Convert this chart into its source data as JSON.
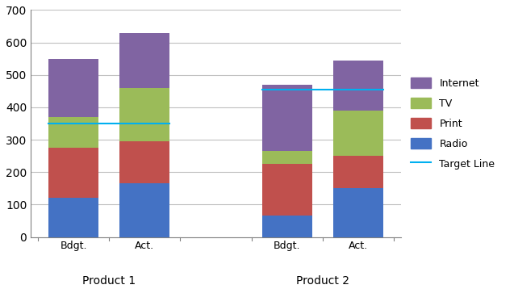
{
  "groups": [
    "Product 1",
    "Product 2"
  ],
  "bars": [
    "Bdgt.",
    "Act."
  ],
  "segments": [
    "Radio",
    "Print",
    "TV",
    "Internet"
  ],
  "colors": {
    "Radio": "#4472C4",
    "Print": "#C0504D",
    "TV": "#9BBB59",
    "Internet": "#8064A2"
  },
  "values": {
    "Product 1": {
      "Bdgt.": [
        120,
        155,
        95,
        180
      ],
      "Act.": [
        165,
        130,
        165,
        170
      ]
    },
    "Product 2": {
      "Bdgt.": [
        65,
        160,
        40,
        205
      ],
      "Act.": [
        150,
        100,
        140,
        155
      ]
    }
  },
  "target_lines": {
    "Product 1": 350,
    "Product 2": 455
  },
  "target_line_color": "#00B0F0",
  "ylim": [
    0,
    700
  ],
  "yticks": [
    0,
    100,
    200,
    300,
    400,
    500,
    600,
    700
  ],
  "background_color": "#FFFFFF",
  "grid_color": "#C0C0C0",
  "bar_width": 0.7,
  "group_positions": [
    0,
    1,
    3,
    4
  ],
  "group_centers": [
    0.5,
    3.5
  ],
  "legend_labels": [
    "Internet",
    "TV",
    "Print",
    "Radio",
    "Target Line"
  ]
}
